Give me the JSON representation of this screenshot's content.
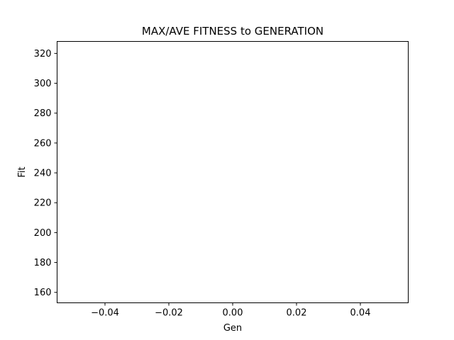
{
  "chart_data": {
    "type": "line",
    "title": "MAX/AVE FITNESS to GENERATION",
    "xlabel": "Gen",
    "ylabel": "Fit",
    "xlim": [
      -0.055,
      0.055
    ],
    "ylim": [
      153,
      328
    ],
    "grid": false,
    "x_ticks": [
      -0.04,
      -0.02,
      0.0,
      0.02,
      0.04
    ],
    "x_tick_labels": [
      "−0.04",
      "−0.02",
      "0.00",
      "0.02",
      "0.04"
    ],
    "y_ticks": [
      160,
      180,
      200,
      220,
      240,
      260,
      280,
      300,
      320
    ],
    "y_tick_labels": [
      "160",
      "180",
      "200",
      "220",
      "240",
      "260",
      "280",
      "300",
      "320"
    ],
    "series": []
  }
}
